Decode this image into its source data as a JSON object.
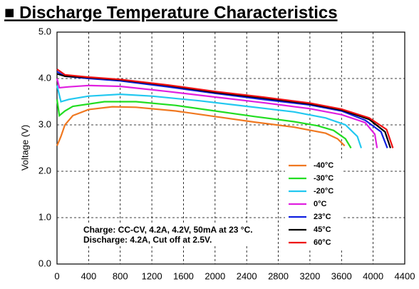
{
  "chart_data": {
    "type": "line",
    "title": "■ Discharge Temperature Characteristics",
    "y_label": "Voltage (V)",
    "annotations": [
      "Charge: CC-CV, 4.2A, 4.2V, 50mA at 23 °C.",
      "Discharge: 4.2A, Cut off at 2.5V."
    ],
    "xlim": [
      0,
      4400
    ],
    "xticks": [
      0,
      400,
      800,
      1200,
      1600,
      2000,
      2400,
      2800,
      3200,
      3600,
      4000,
      4400
    ],
    "ylim": [
      0,
      5
    ],
    "yticks": [
      {
        "value": 0,
        "label": "0.0"
      },
      {
        "value": 1,
        "label": "1.0"
      },
      {
        "value": 2,
        "label": "2.0"
      },
      {
        "value": 3,
        "label": "3.0"
      },
      {
        "value": 4,
        "label": "4.0"
      },
      {
        "value": 5,
        "label": "5.0"
      }
    ],
    "grid": true,
    "series": [
      {
        "name": "-40°C",
        "color": "#f07820",
        "x": [
          0,
          50,
          100,
          200,
          400,
          700,
          1000,
          1500,
          2000,
          2500,
          3000,
          3400,
          3550,
          3640
        ],
        "values": [
          2.55,
          2.75,
          3.0,
          3.2,
          3.33,
          3.39,
          3.38,
          3.3,
          3.18,
          3.06,
          2.95,
          2.82,
          2.7,
          2.55
        ]
      },
      {
        "name": "-30°C",
        "color": "#22dd22",
        "x": [
          0,
          30,
          100,
          200,
          600,
          1000,
          1500,
          2000,
          2500,
          3000,
          3300,
          3500,
          3650,
          3720
        ],
        "values": [
          3.55,
          3.2,
          3.3,
          3.4,
          3.5,
          3.5,
          3.42,
          3.3,
          3.18,
          3.07,
          2.98,
          2.88,
          2.7,
          2.5
        ]
      },
      {
        "name": "-20°C",
        "color": "#22c8f0",
        "x": [
          0,
          50,
          150,
          400,
          800,
          1200,
          1800,
          2400,
          3000,
          3400,
          3650,
          3800,
          3850
        ],
        "values": [
          3.85,
          3.5,
          3.55,
          3.62,
          3.66,
          3.62,
          3.52,
          3.4,
          3.28,
          3.15,
          3.0,
          2.75,
          2.5
        ]
      },
      {
        "name": "0°C",
        "color": "#e020e0",
        "x": [
          0,
          30,
          150,
          400,
          800,
          1400,
          2000,
          2600,
          3200,
          3600,
          3900,
          4020,
          4050
        ],
        "values": [
          4.0,
          3.8,
          3.82,
          3.85,
          3.83,
          3.72,
          3.6,
          3.48,
          3.35,
          3.22,
          3.05,
          2.8,
          2.5
        ]
      },
      {
        "name": "23°C",
        "color": "#1020e0",
        "x": [
          0,
          100,
          400,
          800,
          1400,
          2000,
          2600,
          3200,
          3600,
          3900,
          4100,
          4180
        ],
        "values": [
          4.15,
          4.05,
          4.0,
          3.95,
          3.82,
          3.68,
          3.55,
          3.43,
          3.3,
          3.1,
          2.85,
          2.5
        ]
      },
      {
        "name": "45°C",
        "color": "#000000",
        "x": [
          0,
          100,
          400,
          800,
          1400,
          2000,
          2600,
          3200,
          3600,
          3950,
          4150,
          4220
        ],
        "values": [
          4.1,
          4.05,
          4.02,
          3.97,
          3.85,
          3.7,
          3.58,
          3.45,
          3.32,
          3.12,
          2.85,
          2.5
        ]
      },
      {
        "name": "60°C",
        "color": "#ee1010",
        "x": [
          0,
          100,
          400,
          800,
          1400,
          2000,
          2600,
          3200,
          3600,
          3950,
          4170,
          4250
        ],
        "values": [
          4.2,
          4.08,
          4.03,
          3.98,
          3.86,
          3.72,
          3.6,
          3.47,
          3.34,
          3.15,
          2.9,
          2.5
        ]
      }
    ]
  }
}
